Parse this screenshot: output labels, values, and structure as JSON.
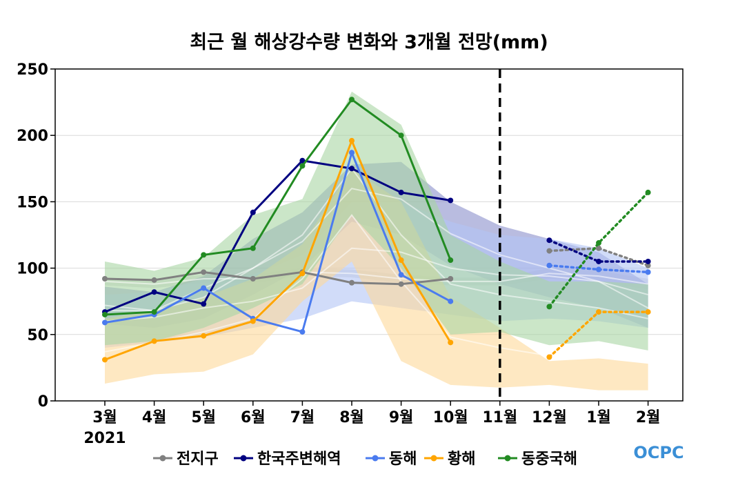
{
  "chart_data": {
    "type": "line",
    "title": "최근 월 해상강수량 변화와 3개월 전망(mm)",
    "categories": [
      "3월",
      "4월",
      "5월",
      "6월",
      "7월",
      "8월",
      "9월",
      "10월",
      "11월",
      "12월",
      "1월",
      "2월"
    ],
    "year_label": "2021",
    "ylim": [
      0,
      250
    ],
    "yticks": [
      0,
      50,
      100,
      150,
      200,
      250
    ],
    "grid": true,
    "legend_position": "bottom",
    "forecast_divider_at": "11월",
    "series": [
      {
        "name": "전지구",
        "color": "#808080",
        "observed": [
          92,
          91,
          97,
          92,
          97,
          89,
          88,
          92,
          null,
          null,
          null,
          null
        ],
        "forecast": [
          null,
          null,
          null,
          null,
          null,
          null,
          null,
          null,
          null,
          113,
          115,
          102
        ],
        "normal": [
          90,
          88,
          92,
          92,
          97,
          96,
          92,
          90,
          90,
          96,
          94,
          88
        ],
        "band_low": [
          87,
          85,
          89,
          89,
          94,
          93,
          89,
          87,
          87,
          92,
          90,
          84
        ],
        "band_high": [
          93,
          91,
          95,
          95,
          100,
          99,
          95,
          93,
          93,
          100,
          98,
          92
        ],
        "band_color": "#d2d2d2"
      },
      {
        "name": "한국주변해역",
        "color": "#000080",
        "observed": [
          67,
          82,
          73,
          142,
          181,
          175,
          157,
          151,
          null,
          null,
          null,
          null
        ],
        "forecast": [
          null,
          null,
          null,
          null,
          null,
          null,
          null,
          null,
          null,
          121,
          105,
          105
        ],
        "normal": [
          72,
          68,
          78,
          100,
          120,
          160,
          152,
          126,
          110,
          100,
          90,
          70
        ],
        "band_low": [
          58,
          55,
          62,
          80,
          100,
          135,
          125,
          102,
          88,
          78,
          70,
          55
        ],
        "band_high": [
          86,
          82,
          94,
          122,
          142,
          178,
          180,
          150,
          132,
          122,
          112,
          88
        ],
        "band_color": "#8b8fcc"
      },
      {
        "name": "동해",
        "color": "#4a7bef",
        "observed": [
          59,
          65,
          85,
          62,
          52,
          187,
          95,
          75,
          null,
          null,
          null,
          null
        ],
        "forecast": [
          null,
          null,
          null,
          null,
          null,
          null,
          null,
          null,
          null,
          102,
          99,
          97
        ],
        "normal": [
          60,
          63,
          70,
          75,
          85,
          115,
          112,
          100,
          95,
          94,
          90,
          80
        ],
        "band_low": [
          40,
          44,
          48,
          55,
          62,
          75,
          70,
          65,
          60,
          62,
          60,
          55
        ],
        "band_high": [
          80,
          82,
          92,
          95,
          110,
          150,
          150,
          135,
          125,
          122,
          115,
          100
        ],
        "band_color": "#b3c4f5"
      },
      {
        "name": "황해",
        "color": "#ffa500",
        "observed": [
          31,
          45,
          49,
          60,
          96,
          196,
          106,
          44,
          null,
          null,
          null,
          null
        ],
        "forecast": [
          null,
          null,
          null,
          null,
          null,
          null,
          null,
          null,
          null,
          33,
          67,
          67
        ],
        "normal": [
          37,
          44,
          52,
          62,
          92,
          140,
          90,
          48,
          40,
          34,
          35,
          30
        ],
        "band_low": [
          13,
          20,
          22,
          35,
          75,
          105,
          30,
          12,
          10,
          12,
          8,
          8
        ],
        "band_high": [
          62,
          68,
          78,
          92,
          118,
          175,
          150,
          78,
          55,
          30,
          32,
          28
        ],
        "band_color": "#fdd99a"
      },
      {
        "name": "동중국해",
        "color": "#228b22",
        "observed": [
          65,
          67,
          110,
          115,
          177,
          227,
          200,
          106,
          null,
          null,
          null,
          null
        ],
        "forecast": [
          null,
          null,
          null,
          null,
          null,
          null,
          null,
          null,
          null,
          71,
          119,
          157
        ],
        "normal": [
          68,
          68,
          85,
          100,
          125,
          175,
          125,
          88,
          80,
          75,
          70,
          62
        ],
        "band_low": [
          42,
          45,
          55,
          70,
          88,
          140,
          100,
          50,
          52,
          42,
          45,
          38
        ],
        "band_high": [
          105,
          98,
          108,
          140,
          152,
          233,
          208,
          125,
          105,
          90,
          90,
          88
        ],
        "band_color": "#a9d6a4"
      }
    ]
  },
  "legend": [
    "전지구",
    "한국주변해역",
    "동해",
    "황해",
    "동중국해"
  ],
  "logo_text": "OCPC"
}
